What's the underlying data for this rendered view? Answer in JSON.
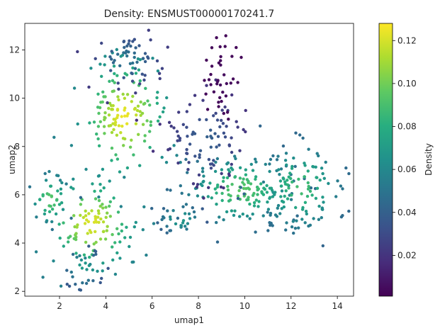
{
  "chart_data": {
    "type": "scatter",
    "title": "Density: ENSMUST00000170241.7",
    "xlabel": "umap1",
    "ylabel": "umap2",
    "xlim": [
      0.5,
      14.7
    ],
    "ylim": [
      1.8,
      13.1
    ],
    "xticks": [
      2,
      4,
      6,
      8,
      10,
      12,
      14
    ],
    "yticks": [
      2,
      4,
      6,
      8,
      10,
      12
    ],
    "colorbar": {
      "label": "Density",
      "range": [
        0.001,
        0.128
      ],
      "ticks": [
        0.02,
        0.04,
        0.06,
        0.08,
        0.1,
        0.12
      ],
      "tick_labels": [
        "0.02",
        "0.04",
        "0.06",
        "0.08",
        "0.10",
        "0.12"
      ],
      "colormap": "viridis"
    },
    "grid": false,
    "clusters": [
      {
        "cx": 4.8,
        "cy": 9.2,
        "sx": 1.0,
        "sy": 1.3,
        "n": 150,
        "peak": 0.125
      },
      {
        "cx": 4.9,
        "cy": 11.6,
        "sx": 0.8,
        "sy": 0.6,
        "n": 60,
        "peak": 0.05
      },
      {
        "cx": 3.4,
        "cy": 4.8,
        "sx": 1.0,
        "sy": 1.0,
        "n": 120,
        "peak": 0.122
      },
      {
        "cx": 1.6,
        "cy": 5.8,
        "sx": 0.5,
        "sy": 0.6,
        "n": 40,
        "peak": 0.095
      },
      {
        "cx": 3.0,
        "cy": 3.0,
        "sx": 0.45,
        "sy": 0.5,
        "n": 30,
        "peak": 0.07
      },
      {
        "cx": 9.8,
        "cy": 6.2,
        "sx": 1.3,
        "sy": 0.8,
        "n": 160,
        "peak": 0.095
      },
      {
        "cx": 12.4,
        "cy": 6.3,
        "sx": 1.0,
        "sy": 1.0,
        "n": 120,
        "peak": 0.09
      },
      {
        "cx": 8.3,
        "cy": 8.3,
        "sx": 0.9,
        "sy": 1.0,
        "n": 90,
        "peak": 0.04
      },
      {
        "cx": 9.0,
        "cy": 10.8,
        "sx": 0.5,
        "sy": 0.8,
        "n": 40,
        "peak": 0.005
      },
      {
        "cx": 7.2,
        "cy": 5.0,
        "sx": 0.6,
        "sy": 0.4,
        "n": 30,
        "peak": 0.07
      }
    ]
  }
}
